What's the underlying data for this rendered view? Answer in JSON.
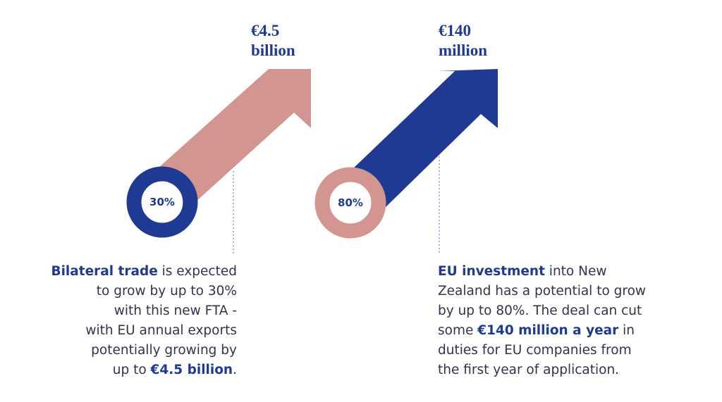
{
  "left": {
    "amount_line1": "€4.5",
    "amount_line2": "billion",
    "percent": "30%",
    "desc_bold": "Bilateral trade",
    "desc_1": " is expected",
    "desc_2": "to grow by up to 30%",
    "desc_3": "with this new FTA -",
    "desc_4": "with EU annual exports",
    "desc_5": "potentially growing by",
    "desc_6a": "up to ",
    "desc_6b": "€4.5 billion",
    "desc_6c": "."
  },
  "right": {
    "amount_line1": "€140",
    "amount_line2": "million",
    "percent": "80%",
    "desc_bold": "EU investment",
    "desc_1": " into New",
    "desc_2": "Zealand has a potential to grow",
    "desc_3": "by up to 80%. The deal can cut",
    "desc_4a": "some ",
    "desc_4b": "€140 million a year",
    "desc_4c": " in",
    "desc_5": "duties for EU companies from",
    "desc_6": "the first year of application."
  },
  "colors": {
    "navy": "#1f3a93",
    "pink": "#d39590",
    "text": "#33334d"
  }
}
